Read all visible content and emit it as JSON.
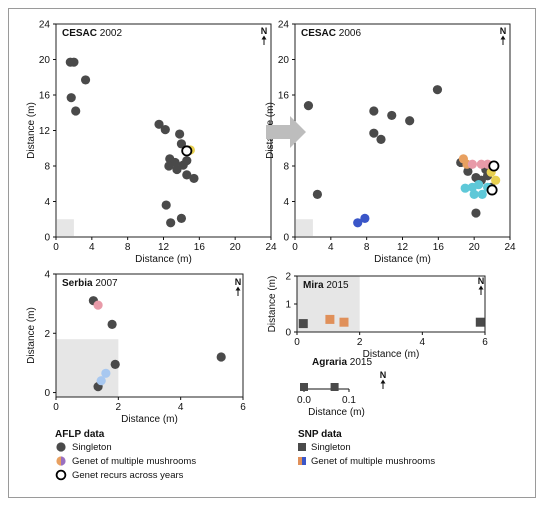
{
  "north_label": "N",
  "colors": {
    "singleton": "#4a4a4a",
    "panel_border": "#222222",
    "grid_shade": "#e6e6e6",
    "arrow": "#bdbdbd",
    "genet_orange": "#e8a060",
    "genet_pink": "#e89aa8",
    "genet_cyan": "#5ec8d8",
    "genet_blue": "#3a56c8",
    "genet_yellow": "#e8d050",
    "genet_lightblue": "#a8c8f0",
    "genet_purple": "#9a70c0",
    "snp_orange": "#e0905a"
  },
  "legend": {
    "aflp": {
      "title": "AFLP data",
      "items": [
        "Singleton",
        "Genet of multiple mushrooms",
        "Genet recurs across years"
      ]
    },
    "snp": {
      "title": "SNP data",
      "items": [
        "Singleton",
        "Genet of multiple mushrooms"
      ]
    }
  },
  "chart_data": [
    {
      "id": "cesac2002",
      "type": "scatter",
      "title_bold": "CESAC",
      "title_year": "2002",
      "xlabel": "Distance (m)",
      "ylabel": "Distance (m)",
      "xlim": [
        0,
        24
      ],
      "ylim": [
        0,
        24
      ],
      "xticks": [
        "0",
        "4",
        "8",
        "12",
        "16",
        "20",
        "24"
      ],
      "yticks": [
        "0",
        "4",
        "8",
        "12",
        "16",
        "20",
        "24"
      ],
      "grid_cell": [
        2,
        2
      ],
      "series": [
        {
          "role": "singleton",
          "color": "#4a4a4a",
          "points": [
            [
              1.6,
              19.7
            ],
            [
              2.0,
              19.7
            ],
            [
              3.3,
              17.7
            ],
            [
              1.7,
              15.7
            ],
            [
              2.2,
              14.2
            ],
            [
              11.5,
              12.7
            ],
            [
              12.2,
              12.1
            ],
            [
              13.8,
              11.6
            ],
            [
              14.0,
              10.5
            ],
            [
              12.7,
              8.8
            ],
            [
              13.3,
              8.4
            ],
            [
              12.6,
              8.0
            ],
            [
              14.6,
              8.6
            ],
            [
              14.2,
              8.1
            ],
            [
              13.5,
              7.6
            ],
            [
              14.6,
              7.0
            ],
            [
              15.4,
              6.6
            ],
            [
              12.3,
              3.6
            ],
            [
              14.0,
              2.1
            ],
            [
              12.8,
              1.6
            ]
          ]
        },
        {
          "role": "genet",
          "color": "#e8d050",
          "points": [
            [
              15.0,
              9.8
            ]
          ]
        },
        {
          "role": "recurring",
          "color": "#ffffff",
          "points": [
            [
              14.6,
              9.7
            ]
          ]
        }
      ]
    },
    {
      "id": "cesac2006",
      "type": "scatter",
      "title_bold": "CESAC",
      "title_year": "2006",
      "xlabel": "Distance (m)",
      "ylabel": "Distance (m)",
      "xlim": [
        0,
        24
      ],
      "ylim": [
        0,
        24
      ],
      "xticks": [
        "0",
        "4",
        "8",
        "12",
        "16",
        "20",
        "24"
      ],
      "yticks": [
        "0",
        "4",
        "8",
        "12",
        "16",
        "20",
        "24"
      ],
      "grid_cell": [
        2,
        2
      ],
      "series": [
        {
          "role": "singleton",
          "color": "#4a4a4a",
          "points": [
            [
              1.5,
              14.8
            ],
            [
              2.5,
              4.8
            ],
            [
              8.8,
              14.2
            ],
            [
              8.8,
              11.7
            ],
            [
              10.8,
              13.7
            ],
            [
              9.6,
              11.0
            ],
            [
              12.8,
              13.1
            ],
            [
              15.9,
              16.6
            ],
            [
              18.5,
              8.4
            ],
            [
              19.3,
              7.4
            ],
            [
              20.2,
              6.7
            ],
            [
              20.8,
              6.4
            ],
            [
              21.5,
              6.9
            ],
            [
              21.9,
              5.6
            ],
            [
              20.2,
              2.7
            ],
            [
              21.3,
              7.6
            ]
          ]
        },
        {
          "role": "genet",
          "color": "#3a56c8",
          "points": [
            [
              7.0,
              1.6
            ],
            [
              7.8,
              2.1
            ]
          ]
        },
        {
          "role": "genet",
          "color": "#e8a060",
          "points": [
            [
              18.8,
              8.8
            ],
            [
              19.2,
              8.2
            ]
          ]
        },
        {
          "role": "genet",
          "color": "#e89aa8",
          "points": [
            [
              19.8,
              8.2
            ],
            [
              20.8,
              8.2
            ],
            [
              21.5,
              8.2
            ]
          ]
        },
        {
          "role": "genet",
          "color": "#5ec8d8",
          "points": [
            [
              19.0,
              5.5
            ],
            [
              19.8,
              5.6
            ],
            [
              20.5,
              5.9
            ],
            [
              20.0,
              4.8
            ],
            [
              20.9,
              4.8
            ],
            [
              21.5,
              5.6
            ]
          ]
        },
        {
          "role": "genet",
          "color": "#e8d050",
          "points": [
            [
              22.4,
              6.4
            ],
            [
              21.9,
              7.3
            ]
          ]
        },
        {
          "role": "recurring",
          "color": "#ffffff",
          "points": [
            [
              22.2,
              8.0
            ],
            [
              22.0,
              5.3
            ]
          ]
        }
      ]
    },
    {
      "id": "serbia2007",
      "type": "scatter",
      "title_bold": "Serbia",
      "title_year": "2007",
      "xlabel": "Distance (m)",
      "ylabel": "Distance (m)",
      "xlim": [
        0,
        6
      ],
      "ylim": [
        -0.15,
        4
      ],
      "xticks": [
        "0",
        "2",
        "4",
        "6"
      ],
      "yticks": [
        "0",
        "2",
        "4"
      ],
      "shade": [
        0,
        2,
        -0.15,
        1.8
      ],
      "series": [
        {
          "role": "singleton",
          "color": "#4a4a4a",
          "points": [
            [
              1.2,
              3.1
            ],
            [
              1.8,
              2.3
            ],
            [
              1.9,
              0.95
            ],
            [
              1.35,
              0.2
            ],
            [
              5.3,
              1.2
            ]
          ]
        },
        {
          "role": "genet",
          "color": "#e89aa8",
          "points": [
            [
              1.35,
              2.95
            ]
          ]
        },
        {
          "role": "genet",
          "color": "#a8c8f0",
          "points": [
            [
              1.6,
              0.65
            ],
            [
              1.45,
              0.4
            ]
          ]
        }
      ]
    },
    {
      "id": "mira2015",
      "type": "scatter",
      "title_bold": "Mira",
      "title_year": "2015",
      "xlabel": "Distance (m)",
      "ylabel": "Distance (m)",
      "xlim": [
        0,
        6
      ],
      "ylim": [
        0,
        2
      ],
      "xticks": [
        "0",
        "2",
        "4",
        "6"
      ],
      "yticks": [
        "0",
        "1",
        "2"
      ],
      "shade": [
        0,
        2,
        0,
        2
      ],
      "series": [
        {
          "role": "snp_singleton",
          "color": "#4a4a4a",
          "points": [
            [
              0.2,
              0.3
            ],
            [
              5.85,
              0.35
            ]
          ]
        },
        {
          "role": "snp_genet",
          "color": "#e0905a",
          "points": [
            [
              1.05,
              0.45
            ],
            [
              1.5,
              0.35
            ]
          ]
        }
      ]
    },
    {
      "id": "agraria2015",
      "type": "scatter",
      "title_bold": "Agraria",
      "title_year": "2015",
      "xlabel": "Distance (m)",
      "xlim": [
        0,
        0.1
      ],
      "xticks": [
        "0.0",
        "0.1"
      ],
      "series": [
        {
          "role": "snp_singleton",
          "color": "#4a4a4a",
          "points": [
            [
              0.0,
              0
            ],
            [
              0.068,
              0
            ]
          ]
        }
      ]
    }
  ]
}
